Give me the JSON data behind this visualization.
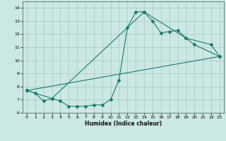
{
  "xlabel": "Humidex (Indice chaleur)",
  "xlim": [
    -0.5,
    23.5
  ],
  "ylim": [
    6,
    14.5
  ],
  "yticks": [
    6,
    7,
    8,
    9,
    10,
    11,
    12,
    13,
    14
  ],
  "xticks": [
    0,
    1,
    2,
    3,
    4,
    5,
    6,
    7,
    8,
    9,
    10,
    11,
    12,
    13,
    14,
    15,
    16,
    17,
    18,
    19,
    20,
    21,
    22,
    23
  ],
  "bg_color": "#cce8e4",
  "grid_color": "#aaccc8",
  "line_color": "#1a7a6e",
  "lines": [
    {
      "x": [
        0,
        1,
        2,
        3,
        4,
        5,
        6,
        7,
        8,
        9,
        10,
        11,
        12,
        13,
        14,
        15,
        16,
        17,
        18,
        19,
        20,
        23
      ],
      "y": [
        7.7,
        7.5,
        6.9,
        7.1,
        6.9,
        6.5,
        6.5,
        6.5,
        6.6,
        6.6,
        7.0,
        8.5,
        12.5,
        13.7,
        13.7,
        13.0,
        12.1,
        12.2,
        12.3,
        11.7,
        11.2,
        10.3
      ]
    },
    {
      "x": [
        0,
        3,
        14,
        19,
        22,
        23
      ],
      "y": [
        7.7,
        7.1,
        13.7,
        11.7,
        11.2,
        10.3
      ]
    },
    {
      "x": [
        0,
        23
      ],
      "y": [
        7.7,
        10.3
      ]
    }
  ]
}
